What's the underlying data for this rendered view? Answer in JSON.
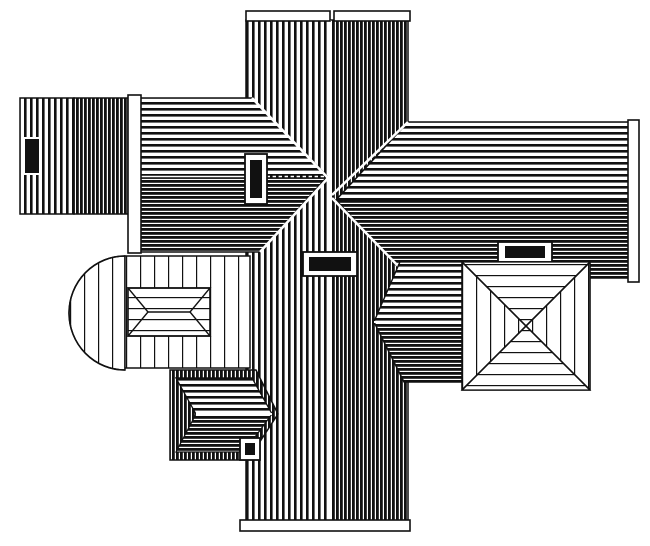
{
  "figure": {
    "background": "#ffffff",
    "ink": "#111111",
    "paper": "#ffffff"
  }
}
